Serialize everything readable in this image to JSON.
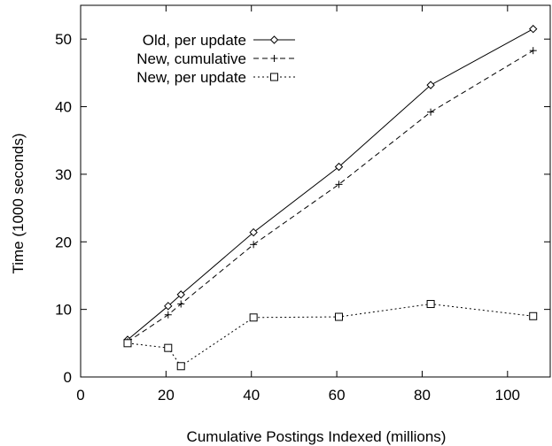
{
  "chart_data": {
    "type": "line",
    "xlabel": "Cumulative Postings Indexed (millions)",
    "ylabel": "Time (1000 seconds)",
    "xlim": [
      0,
      110
    ],
    "ylim": [
      0,
      55
    ],
    "xticks": [
      0,
      20,
      40,
      60,
      80,
      100
    ],
    "yticks": [
      0,
      10,
      20,
      30,
      40,
      50
    ],
    "grid": false,
    "legend_position": "top-left",
    "series": [
      {
        "name": "Old, per update",
        "line_style": "solid",
        "marker": "diamond",
        "x": [
          11,
          20.5,
          23.5,
          40.5,
          60.5,
          82,
          106
        ],
        "y": [
          5.5,
          10.5,
          12.2,
          21.4,
          31.1,
          43.2,
          51.5
        ]
      },
      {
        "name": "New, cumulative",
        "line_style": "dashed",
        "marker": "plus",
        "x": [
          11,
          20.5,
          23.5,
          40.5,
          60.5,
          82,
          106
        ],
        "y": [
          5.2,
          9.2,
          10.8,
          19.6,
          28.5,
          39.2,
          48.3
        ]
      },
      {
        "name": "New, per update",
        "line_style": "dotted",
        "marker": "square",
        "x": [
          11,
          20.5,
          23.5,
          40.5,
          60.5,
          82,
          106
        ],
        "y": [
          5.0,
          4.3,
          1.6,
          8.8,
          8.9,
          10.8,
          9.0
        ]
      }
    ]
  }
}
